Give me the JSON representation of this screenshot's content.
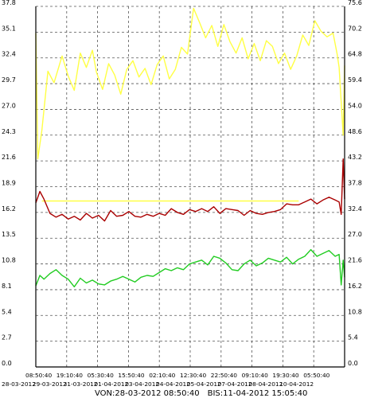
{
  "chart_data": {
    "type": "line",
    "title": "",
    "xlabel": "",
    "ylabel": "",
    "grid": true,
    "y_left": {
      "range": [
        0,
        37.8
      ],
      "ticks": [
        "0.0",
        "2.7",
        "5.4",
        "8.1",
        "10.8",
        "13.5",
        "16.2",
        "18.9",
        "21.6",
        "24.3",
        "27.0",
        "29.7",
        "32.4",
        "35.1",
        "37.8"
      ]
    },
    "y_right": {
      "range": [
        0,
        75.6
      ],
      "ticks": [
        "0.0",
        "5.4",
        "10.8",
        "16.2",
        "21.6",
        "27.0",
        "32.4",
        "37.8",
        "43.2",
        "48.6",
        "54.0",
        "59.4",
        "64.8",
        "70.2",
        "75.6"
      ]
    },
    "x_time_ticks": [
      "08:50:40",
      "19:10:40",
      "05:30:40",
      "15:50:40",
      "02:10:40",
      "12:30:40",
      "22:50:40",
      "09:10:40",
      "19:30:40",
      "05:50:40"
    ],
    "x_date_ticks": [
      "28-03-2012",
      "29-03-2012",
      "31-03-2012",
      "01-04-2012",
      "03-04-2012",
      "04-04-2012",
      "05-04-2012",
      "07-04-2012",
      "08-04-2012",
      "10-04-2012"
    ],
    "x_range": [
      "28-03-2012 08:50:40",
      "11-04-2012 15:05:40"
    ],
    "series": [
      {
        "color": "#ffff44",
        "axis": "left",
        "x": [
          0,
          0.1,
          0.3,
          0.6,
          0.9,
          1.3,
          1.6,
          1.9,
          2.2,
          2.5,
          2.8,
          3.0,
          3.3,
          3.6,
          3.9,
          4.2,
          4.5,
          4.8,
          5.1,
          5.4,
          5.7,
          6.0,
          6.3,
          6.6,
          6.9,
          7.2,
          7.5,
          7.8,
          8.1,
          8.4,
          8.7,
          9.0,
          9.3,
          9.6,
          9.9,
          10.2,
          10.5,
          10.8,
          11.1,
          11.4,
          11.7,
          12.0,
          12.3,
          12.6,
          12.9,
          13.2,
          13.5,
          13.8,
          14.1,
          14.4,
          14.7,
          14.9,
          15.0,
          15.2,
          15.27
        ],
        "values": [
          35.0,
          21.8,
          24.8,
          31.0,
          29.8,
          32.6,
          30.5,
          29.0,
          32.9,
          31.4,
          33.2,
          30.9,
          29.1,
          31.8,
          30.6,
          28.6,
          31.2,
          32.1,
          30.4,
          31.3,
          29.6,
          31.7,
          32.6,
          30.2,
          31.2,
          33.5,
          32.8,
          37.6,
          36.1,
          34.5,
          35.8,
          33.6,
          35.9,
          34.1,
          32.9,
          34.5,
          32.3,
          33.9,
          32.1,
          34.2,
          33.6,
          31.8,
          32.9,
          31.2,
          32.6,
          34.8,
          33.7,
          36.3,
          35.2,
          34.6,
          35.0,
          32.8,
          31.4,
          24.3,
          31.6
        ]
      },
      {
        "color": "#ffff44",
        "axis": "left",
        "x": [
          0.3,
          13.0
        ],
        "values": [
          17.4,
          17.4
        ]
      },
      {
        "color": "#aa0000",
        "axis": "left",
        "x": [
          0,
          0.2,
          0.4,
          0.7,
          1.0,
          1.3,
          1.6,
          1.9,
          2.2,
          2.5,
          2.8,
          3.1,
          3.4,
          3.7,
          4.0,
          4.3,
          4.6,
          4.9,
          5.2,
          5.5,
          5.8,
          6.1,
          6.4,
          6.7,
          7.0,
          7.3,
          7.6,
          7.9,
          8.2,
          8.5,
          8.8,
          9.1,
          9.4,
          9.7,
          10.0,
          10.3,
          10.6,
          10.9,
          11.2,
          11.5,
          11.8,
          12.1,
          12.4,
          12.7,
          13.0,
          13.3,
          13.6,
          13.9,
          14.2,
          14.5,
          14.8,
          15.0,
          15.1,
          15.2,
          15.27
        ],
        "values": [
          17.2,
          18.4,
          17.6,
          16.1,
          15.7,
          16.0,
          15.5,
          15.8,
          15.4,
          16.1,
          15.6,
          15.9,
          15.3,
          16.4,
          15.8,
          15.9,
          16.3,
          15.8,
          15.7,
          16.0,
          15.8,
          16.1,
          15.9,
          16.6,
          16.2,
          16.0,
          16.5,
          16.3,
          16.6,
          16.3,
          16.8,
          16.1,
          16.6,
          16.5,
          16.4,
          15.9,
          16.4,
          16.1,
          16.0,
          16.2,
          16.3,
          16.5,
          17.1,
          17.0,
          17.0,
          17.3,
          17.6,
          17.1,
          17.5,
          17.8,
          17.5,
          17.3,
          16.0,
          21.8,
          17.6
        ]
      },
      {
        "color": "#22cc22",
        "axis": "left",
        "x": [
          0,
          0.2,
          0.4,
          0.7,
          1.0,
          1.3,
          1.6,
          1.9,
          2.2,
          2.5,
          2.8,
          3.1,
          3.4,
          3.7,
          4.0,
          4.3,
          4.6,
          4.9,
          5.2,
          5.5,
          5.8,
          6.1,
          6.4,
          6.7,
          7.0,
          7.3,
          7.6,
          7.9,
          8.2,
          8.5,
          8.8,
          9.1,
          9.4,
          9.7,
          10.0,
          10.3,
          10.6,
          10.9,
          11.2,
          11.5,
          11.8,
          12.1,
          12.4,
          12.7,
          13.0,
          13.3,
          13.6,
          13.9,
          14.2,
          14.5,
          14.8,
          15.0,
          15.1,
          15.2,
          15.27
        ],
        "values": [
          8.5,
          9.6,
          9.2,
          9.8,
          10.2,
          9.6,
          9.2,
          8.4,
          9.3,
          8.8,
          9.1,
          8.7,
          8.6,
          9.0,
          9.2,
          9.5,
          9.2,
          8.9,
          9.4,
          9.6,
          9.5,
          9.9,
          10.3,
          10.1,
          10.4,
          10.2,
          10.8,
          11.0,
          11.2,
          10.7,
          11.6,
          11.4,
          10.9,
          10.2,
          10.1,
          10.8,
          11.2,
          10.6,
          10.9,
          11.4,
          11.2,
          11.0,
          11.5,
          10.8,
          11.3,
          11.6,
          12.3,
          11.6,
          11.9,
          12.2,
          11.6,
          11.8,
          8.6,
          11.2,
          9.4
        ]
      }
    ]
  },
  "footer": {
    "von_label": "VON:",
    "von_value": "28-03-2012 08:50:40",
    "bis_label": "BIS:",
    "bis_value": "11-04-2012 15:05:40"
  }
}
